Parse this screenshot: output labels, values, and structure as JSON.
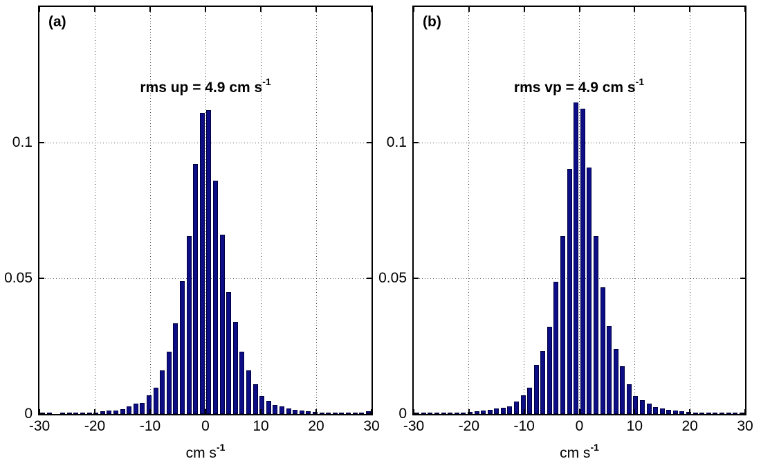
{
  "figure": {
    "background": "#ffffff",
    "axis_color": "#000000",
    "bar_face_color": "#0d0d86",
    "bar_edge_color": "#000040"
  },
  "xlabel": {
    "text": "cm s",
    "sup": "-1"
  },
  "panels": [
    {
      "label": "(a)",
      "annotation": {
        "prefix": "rms up = 4.9 cm s",
        "sup": "-1"
      }
    },
    {
      "label": "(b)",
      "annotation": {
        "prefix": "rms vp = 4.9 cm s",
        "sup": "-1"
      }
    }
  ],
  "chart_data": [
    {
      "type": "bar",
      "title": "rms up = 4.9 cm s^-1",
      "xlabel": "cm s^-1",
      "ylabel": "",
      "xlim": [
        -30,
        30
      ],
      "ylim": [
        0,
        0.15
      ],
      "xticks": [
        -30,
        -20,
        -10,
        0,
        10,
        20,
        30
      ],
      "yticks": [
        0,
        0.05,
        0.1
      ],
      "grid": true,
      "legend": null,
      "bin_width": 1.2,
      "x": [
        -29.4,
        -28.2,
        -27.0,
        -25.8,
        -24.6,
        -23.4,
        -22.2,
        -21.0,
        -19.8,
        -18.6,
        -17.4,
        -16.2,
        -15.0,
        -13.8,
        -12.6,
        -11.4,
        -10.2,
        -9.0,
        -7.8,
        -6.6,
        -5.4,
        -4.2,
        -3.0,
        -1.8,
        -0.6,
        0.6,
        1.8,
        3.0,
        4.2,
        5.4,
        6.6,
        7.8,
        9.0,
        10.2,
        11.4,
        12.6,
        13.8,
        15.0,
        16.2,
        17.4,
        18.6,
        19.8,
        21.0,
        22.2,
        23.4,
        24.6,
        25.8,
        27.0,
        28.2,
        29.4
      ],
      "values": [
        0.0002,
        0.0002,
        0,
        0.0002,
        0.0003,
        0.0003,
        0.0004,
        0.0004,
        0.0006,
        0.0009,
        0.0012,
        0.0013,
        0.0019,
        0.0029,
        0.0037,
        0.0042,
        0.0069,
        0.0097,
        0.016,
        0.023,
        0.0335,
        0.049,
        0.0655,
        0.092,
        0.111,
        0.112,
        0.086,
        0.066,
        0.045,
        0.034,
        0.023,
        0.016,
        0.011,
        0.0067,
        0.0048,
        0.0034,
        0.0027,
        0.002,
        0.0015,
        0.0012,
        0.001,
        0.0008,
        0.0004,
        0.0004,
        0.0003,
        0.0003,
        0.0002,
        0.0002,
        0.0002,
        0.001
      ]
    },
    {
      "type": "bar",
      "title": "rms vp = 4.9 cm s^-1",
      "xlabel": "cm s^-1",
      "ylabel": "",
      "xlim": [
        -30,
        30
      ],
      "ylim": [
        0,
        0.15
      ],
      "xticks": [
        -30,
        -20,
        -10,
        0,
        10,
        20,
        30
      ],
      "yticks": [
        0,
        0.05,
        0.1
      ],
      "grid": true,
      "legend": null,
      "bin_width": 1.2,
      "x": [
        -29.4,
        -28.2,
        -27.0,
        -25.8,
        -24.6,
        -23.4,
        -22.2,
        -21.0,
        -19.8,
        -18.6,
        -17.4,
        -16.2,
        -15.0,
        -13.8,
        -12.6,
        -11.4,
        -10.2,
        -9.0,
        -7.8,
        -6.6,
        -5.4,
        -4.2,
        -3.0,
        -1.8,
        -0.6,
        0.6,
        1.8,
        3.0,
        4.2,
        5.4,
        6.6,
        7.8,
        9.0,
        10.2,
        11.4,
        12.6,
        13.8,
        15.0,
        16.2,
        17.4,
        18.6,
        19.8,
        21.0,
        22.2,
        23.4,
        24.6,
        25.8,
        27.0,
        28.2,
        29.4
      ],
      "values": [
        0.0002,
        0.0002,
        0.0002,
        0.0003,
        0.0003,
        0.0003,
        0.0004,
        0.0005,
        0.0007,
        0.0011,
        0.0013,
        0.0015,
        0.002,
        0.0022,
        0.0029,
        0.0046,
        0.007,
        0.0098,
        0.018,
        0.0232,
        0.0321,
        0.0487,
        0.0656,
        0.0902,
        0.1147,
        0.1125,
        0.0907,
        0.0656,
        0.0468,
        0.0324,
        0.0239,
        0.0175,
        0.011,
        0.0067,
        0.005,
        0.0039,
        0.0025,
        0.002,
        0.0015,
        0.0013,
        0.001,
        0.0008,
        0.0005,
        0.0004,
        0.0004,
        0.0003,
        0.0003,
        0.0003,
        0.0002,
        0.0002
      ]
    }
  ]
}
